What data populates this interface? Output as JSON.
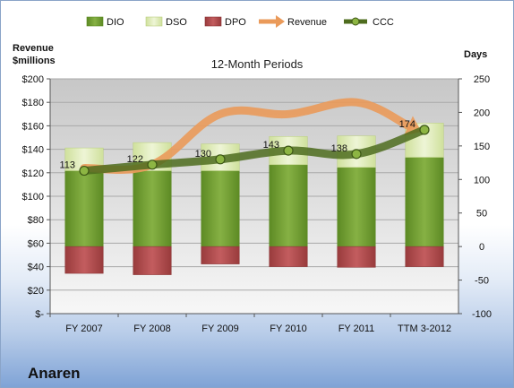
{
  "company": "Anaren",
  "chart_data": {
    "type": "bar",
    "title": "12-Month Periods",
    "categories": [
      "FY 2007",
      "FY 2008",
      "FY 2009",
      "FY 2010",
      "FY 2011",
      "TTM 3-2012"
    ],
    "left_axis": {
      "label_line1": "Revenue",
      "label_line2": "$millions",
      "range": [
        0,
        200
      ],
      "ticks": [
        "$-",
        "$20",
        "$40",
        "$60",
        "$80",
        "$100",
        "$120",
        "$140",
        "$160",
        "$180",
        "$200"
      ]
    },
    "right_axis": {
      "label": "Days",
      "range": [
        -100,
        250
      ],
      "ticks": [
        "-100",
        "-50",
        "0",
        "50",
        "100",
        "150",
        "200",
        "250"
      ]
    },
    "legend_position": "top",
    "grid": true,
    "series": [
      {
        "name": "DIO",
        "axis": "days",
        "values": [
          113,
          113,
          113,
          122,
          118,
          133
        ],
        "color": "#6f9b32"
      },
      {
        "name": "DSO",
        "axis": "days",
        "values": [
          34,
          42,
          40,
          42,
          47,
          51
        ],
        "color": "#dbeab7"
      },
      {
        "name": "DPO",
        "axis": "days",
        "values": [
          -40,
          -42,
          -26,
          -30,
          -31,
          -30
        ],
        "color": "#b04a4c"
      },
      {
        "name": "Revenue",
        "axis": "revenue",
        "values": [
          124,
          127,
          170,
          170,
          180,
          160
        ],
        "color": "#ea9a5a"
      },
      {
        "name": "CCC",
        "axis": "days",
        "values": [
          113,
          122,
          130,
          143,
          138,
          174
        ],
        "color": "#4e6c1e",
        "labels": [
          "113",
          "122",
          "130",
          "143",
          "138",
          "174"
        ]
      }
    ]
  }
}
